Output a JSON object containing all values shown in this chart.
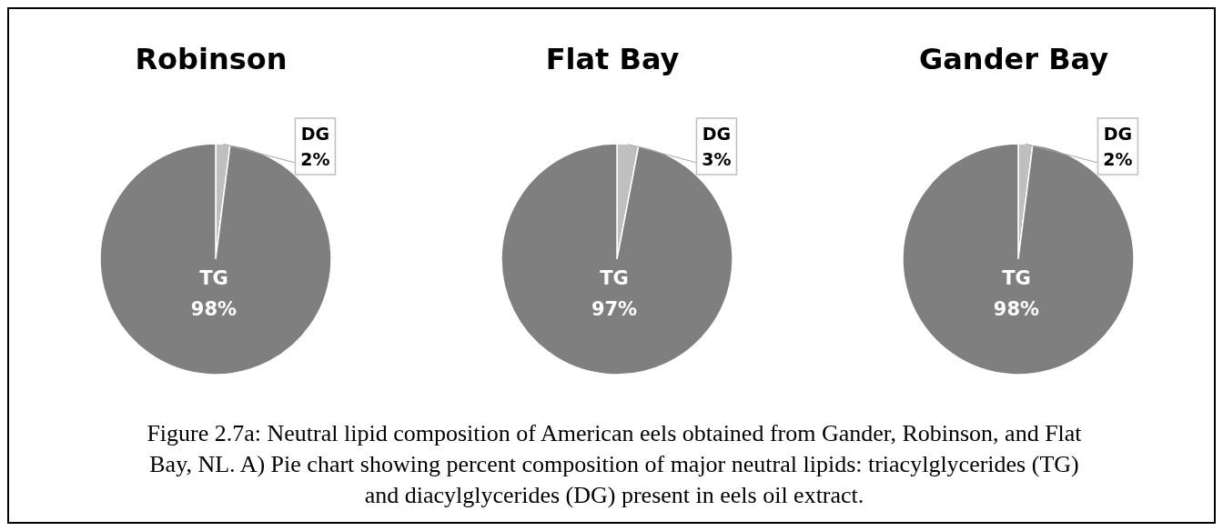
{
  "chart_data": [
    {
      "type": "pie",
      "title": "Robinson",
      "categories": [
        "DG",
        "TG"
      ],
      "values": [
        2,
        98
      ],
      "colors": [
        "#bfbfbf",
        "#7f7f7f"
      ],
      "value_labels": [
        "2%",
        "98%"
      ]
    },
    {
      "type": "pie",
      "title": "Flat Bay",
      "categories": [
        "DG",
        "TG"
      ],
      "values": [
        3,
        97
      ],
      "colors": [
        "#bfbfbf",
        "#7f7f7f"
      ],
      "value_labels": [
        "3%",
        "97%"
      ]
    },
    {
      "type": "pie",
      "title": "Gander Bay",
      "categories": [
        "DG",
        "TG"
      ],
      "values": [
        2,
        98
      ],
      "colors": [
        "#bfbfbf",
        "#7f7f7f"
      ],
      "value_labels": [
        "2%",
        "98%"
      ],
      "annotations": [
        "Figure 2.7a: Neutral lipid composition of American eels obtained from Gander, Robinson, and Flat Bay, NL.  A) Pie chart showing percent composition of major neutral lipids: triacylglycerides (TG) and diacylglycerides (DG) present in eels oil extract."
      ]
    }
  ]
}
